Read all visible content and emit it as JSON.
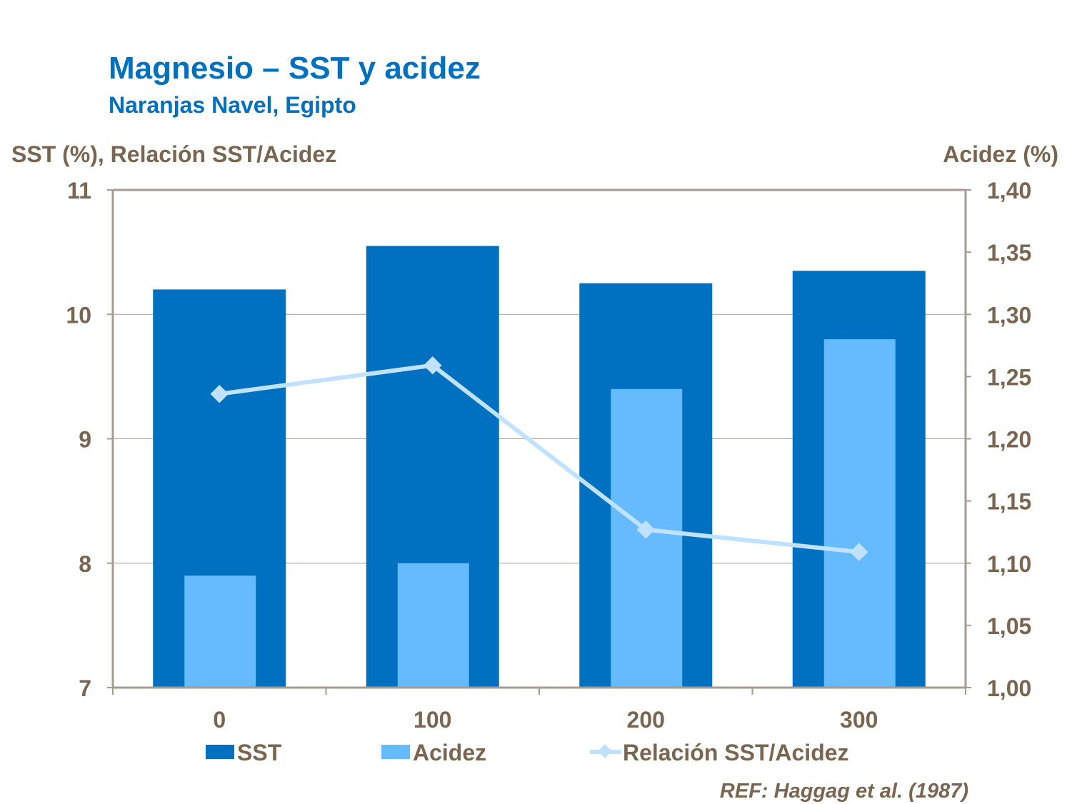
{
  "chart_data": {
    "type": "bar",
    "title": "Magnesio – SST y acidez",
    "subtitle": "Naranjas Navel, Egipto",
    "xlabel": "",
    "ylabel": "SST (%), Relación SST/Acidez",
    "y2label": "Acidez (%)",
    "categories": [
      "0",
      "100",
      "200",
      "300"
    ],
    "ylim": [
      7,
      11
    ],
    "yticks": [
      "7",
      "8",
      "9",
      "10",
      "11"
    ],
    "y2lim": [
      1.0,
      1.4
    ],
    "y2ticks": [
      "1,00",
      "1,05",
      "1,10",
      "1,15",
      "1,20",
      "1,25",
      "1,30",
      "1,35",
      "1,40"
    ],
    "grid": true,
    "legend_position": "bottom",
    "series": [
      {
        "name": "SST",
        "kind": "bar",
        "axis": "left",
        "color": "#0070C0",
        "values": [
          10.2,
          10.55,
          10.25,
          10.35
        ]
      },
      {
        "name": "Acidez",
        "kind": "bar",
        "axis": "right",
        "color": "#66BBFF",
        "values": [
          1.09,
          1.1,
          1.24,
          1.28
        ]
      },
      {
        "name": "Relación SST/Acidez",
        "kind": "line",
        "axis": "left",
        "color": "#C0E2FF",
        "values": [
          9.36,
          9.59,
          8.27,
          8.09
        ]
      }
    ],
    "annotation": "REF: Haggag et al. (1987)"
  }
}
